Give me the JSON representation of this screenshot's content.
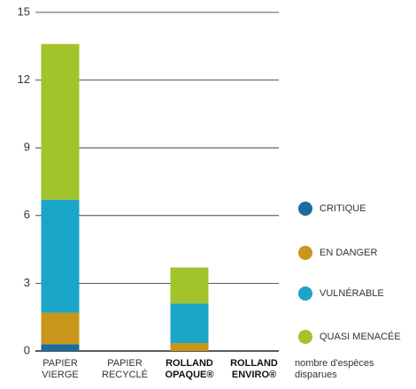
{
  "chart_data": {
    "type": "stacked_bar",
    "categories": [
      "PAPIER VIERGE",
      "PAPIER RECYCLÉ",
      "ROLLAND OPAQUE®",
      "ROLLAND ENVIRO®"
    ],
    "category_bold": [
      false,
      false,
      true,
      true
    ],
    "series": [
      {
        "name": "CRITIQUE",
        "color": "#1a6d9e",
        "values": [
          0.3,
          0,
          0,
          0
        ]
      },
      {
        "name": "EN DANGER",
        "color": "#c8961a",
        "values": [
          1.4,
          0,
          0.35,
          0
        ]
      },
      {
        "name": "VULNÉRABLE",
        "color": "#1aa5c9",
        "values": [
          5.0,
          0,
          1.75,
          0
        ]
      },
      {
        "name": "QUASI MENACÉE",
        "color": "#a3c32a",
        "values": [
          6.9,
          0,
          1.6,
          0
        ]
      }
    ],
    "y_label": "nombre d'espèces disparues",
    "ylim": [
      0,
      15
    ],
    "yticks": [
      0,
      3,
      6,
      9,
      12,
      15
    ],
    "grid": true,
    "legend": "right"
  }
}
